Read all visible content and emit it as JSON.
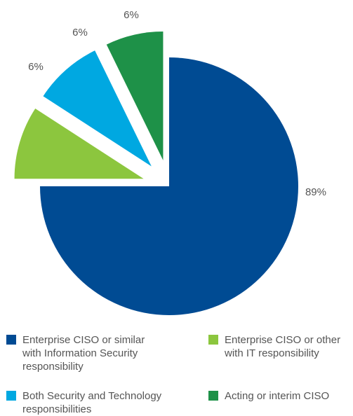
{
  "chart_data": {
    "type": "pie",
    "title": "",
    "slices": [
      {
        "label": "Enterprise CISO or similar\nwith Information Security\nresponsibility",
        "value": 89,
        "display": "89%",
        "color": "#004b93"
      },
      {
        "label": "Enterprise CISO or other\nwith IT responsibility",
        "value": 6,
        "display": "6%",
        "color": "#8cc63e"
      },
      {
        "label": "Both Security and Technology\nresponsibilities",
        "value": 6,
        "display": "6%",
        "color": "#00a8e1"
      },
      {
        "label": "Acting or interim CISO",
        "value": 6,
        "display": "6%",
        "color": "#1e9148"
      }
    ],
    "exploded": [
      "Enterprise CISO or other\nwith IT responsibility",
      "Both Security and Technology\nresponsibilities",
      "Acting or interim CISO"
    ],
    "legend_position": "bottom"
  }
}
